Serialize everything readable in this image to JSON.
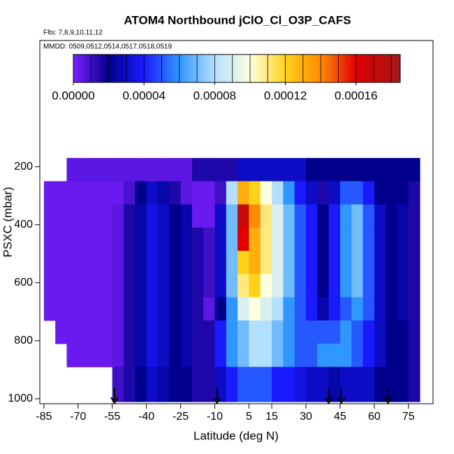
{
  "chart_data": {
    "type": "heatmap",
    "title": "ATOM4 Northbound jClO_Cl_O3P_CAFS",
    "subtitle": "Flts: 7,8,9,10,11,12",
    "annotation": "MMDD: 0509,0512,0514,0517,0518,0519",
    "xlabel": "Latitude (deg N)",
    "ylabel": "PSXC (mbar)",
    "xlim": [
      -86.8,
      85.8
    ],
    "xticks": [
      -85,
      -70,
      -55,
      -40,
      -25,
      -10,
      5,
      15,
      30,
      45,
      60,
      75
    ],
    "ylim": [
      1017,
      -235
    ],
    "y_reversed": true,
    "yticks": [
      200,
      400,
      600,
      800,
      1000
    ],
    "lat_edges": [
      -85,
      -80,
      -75,
      -70,
      -65,
      -60,
      -55,
      -50,
      -45,
      -40,
      -35,
      -30,
      -25,
      -20,
      -15,
      -10,
      -5,
      0,
      5,
      10,
      15,
      20,
      25,
      30,
      35,
      40,
      45,
      50,
      55,
      60,
      65,
      70,
      75,
      80
    ],
    "pressure_edges": [
      170,
      250,
      330,
      410,
      490,
      570,
      650,
      730,
      810,
      890,
      1010
    ],
    "values": [
      [
        null,
        null,
        5e-06,
        5e-06,
        5e-06,
        5e-06,
        5e-06,
        5e-06,
        5e-06,
        5e-06,
        5e-06,
        5e-06,
        5e-06,
        1.5e-05,
        1.5e-05,
        1.5e-05,
        1.5e-05,
        3e-05,
        3e-05,
        3e-05,
        3e-05,
        3e-05,
        3e-05,
        2e-05,
        2e-05,
        2e-05,
        2e-05,
        2e-05,
        2e-05,
        2e-05,
        2e-05,
        2e-05,
        2e-05
      ],
      [
        3e-06,
        3e-06,
        3e-06,
        3e-06,
        3e-06,
        3e-06,
        3e-06,
        8e-06,
        2e-05,
        3e-05,
        2.5e-05,
        1.5e-05,
        5e-06,
        3e-06,
        3e-06,
        1e-05,
        8e-05,
        0.00013,
        0.00012,
        0.0001,
        8e-05,
        6e-05,
        4e-05,
        3e-05,
        1.5e-05,
        3e-05,
        5e-05,
        5e-05,
        4e-05,
        2e-05,
        2e-05,
        2e-05,
        1.5e-05
      ],
      [
        3e-06,
        3e-06,
        3e-06,
        3e-06,
        3e-06,
        3e-06,
        5e-06,
        1.5e-05,
        2.5e-05,
        3.5e-05,
        3e-05,
        2e-05,
        2.5e-05,
        3e-06,
        3e-06,
        3e-05,
        7e-05,
        0.00017,
        0.00014,
        0.00011,
        9e-05,
        7e-05,
        5e-05,
        4e-05,
        2e-05,
        4e-05,
        6e-05,
        7e-05,
        5e-05,
        3e-05,
        2e-05,
        2.5e-05,
        1.5e-05
      ],
      [
        3e-06,
        3e-06,
        3e-06,
        3e-06,
        3e-06,
        3e-06,
        5e-06,
        1.5e-05,
        2.5e-05,
        3.5e-05,
        3e-05,
        2e-05,
        2.5e-05,
        1.5e-05,
        1e-05,
        3e-05,
        7e-05,
        0.00016,
        0.00013,
        0.00011,
        9e-05,
        7e-05,
        5e-05,
        4e-05,
        2e-05,
        4e-05,
        6e-05,
        7e-05,
        5e-05,
        3e-05,
        2e-05,
        2.5e-05,
        1.5e-05
      ],
      [
        3e-06,
        3e-06,
        3e-06,
        3e-06,
        3e-06,
        3e-06,
        5e-06,
        1.5e-05,
        2.5e-05,
        3.5e-05,
        3e-05,
        2e-05,
        2.5e-05,
        1.5e-05,
        1e-05,
        3e-05,
        7e-05,
        0.00012,
        0.00013,
        0.00011,
        9e-05,
        7e-05,
        5e-05,
        4e-05,
        2e-05,
        4e-05,
        6e-05,
        7e-05,
        5e-05,
        3e-05,
        2e-05,
        2.5e-05,
        1.5e-05
      ],
      [
        3e-06,
        3e-06,
        3e-06,
        3e-06,
        3e-06,
        3e-06,
        5e-06,
        1.5e-05,
        2.5e-05,
        3.5e-05,
        3e-05,
        2e-05,
        2.5e-05,
        1.5e-05,
        1e-05,
        3e-05,
        7e-05,
        0.00011,
        0.00012,
        0.0001,
        9e-05,
        7e-05,
        5e-05,
        4e-05,
        2e-05,
        4e-05,
        6e-05,
        7e-05,
        5e-05,
        3e-05,
        2e-05,
        2.5e-05,
        1.5e-05
      ],
      [
        3e-06,
        3e-06,
        3e-06,
        3e-06,
        3e-06,
        3e-06,
        5e-06,
        1.5e-05,
        2.5e-05,
        3.5e-05,
        3e-05,
        2e-05,
        2.5e-05,
        1.5e-05,
        5e-06,
        2e-05,
        6e-05,
        9e-05,
        0.0001,
        9e-05,
        8e-05,
        6e-05,
        5e-05,
        4e-05,
        2.5e-05,
        4e-05,
        5e-05,
        6e-05,
        5e-05,
        3e-05,
        2e-05,
        2.5e-05,
        1.5e-05
      ],
      [
        null,
        3e-06,
        3e-06,
        3e-06,
        3e-06,
        3e-06,
        5e-06,
        1.5e-05,
        2.5e-05,
        3.5e-05,
        3e-05,
        2e-05,
        2.5e-05,
        1.5e-05,
        1.5e-05,
        4e-05,
        6e-05,
        7e-05,
        8e-05,
        8e-05,
        7e-05,
        6e-05,
        5e-05,
        5e-05,
        5e-05,
        5e-05,
        6e-05,
        5e-05,
        4e-05,
        3e-05,
        2e-05,
        2e-05,
        1.5e-05
      ],
      [
        null,
        null,
        3e-06,
        3e-06,
        3e-06,
        3e-06,
        5e-06,
        1.5e-05,
        2.5e-05,
        3.5e-05,
        3e-05,
        2e-05,
        2.5e-05,
        1.5e-05,
        1.5e-05,
        4e-05,
        6e-05,
        7e-05,
        8e-05,
        8e-05,
        7e-05,
        6e-05,
        5e-05,
        5e-05,
        6e-05,
        6e-05,
        6e-05,
        5e-05,
        4e-05,
        3e-05,
        2e-05,
        2e-05,
        1.5e-05
      ],
      [
        null,
        null,
        null,
        null,
        null,
        null,
        1e-05,
        1.5e-05,
        2e-05,
        3e-05,
        2.5e-05,
        2e-05,
        2e-05,
        1.5e-05,
        1.5e-05,
        3e-05,
        4e-05,
        5e-05,
        5e-05,
        5e-05,
        4e-05,
        4e-05,
        3.5e-05,
        3e-05,
        3e-05,
        2.5e-05,
        3e-05,
        3e-05,
        3e-05,
        2e-05,
        2e-05,
        2e-05,
        1.5e-05
      ]
    ],
    "arrows_lat": [
      -54,
      -9,
      40,
      45.5,
      66
    ],
    "colorbar_lim": [
      0,
      0.000185
    ],
    "colorbar_ticks": [
      {
        "value": 0,
        "label": "0.00000"
      },
      {
        "value": 4e-05,
        "label": "0.00004"
      },
      {
        "value": 8e-05,
        "label": "0.00008"
      },
      {
        "value": 0.00012,
        "label": "0.00012"
      },
      {
        "value": 0.00016,
        "label": "0.00016"
      }
    ],
    "colorbar_breaks": [
      1e-05,
      2e-05,
      3e-05,
      4e-05,
      5e-05,
      6e-05,
      7e-05,
      8e-05,
      9e-05,
      0.0001,
      0.00011,
      0.00012,
      0.00013,
      0.00014,
      0.00015,
      0.00016,
      0.00017,
      0.00018
    ],
    "colormap": [
      [
        0,
        "#7b1fff"
      ],
      [
        2e-05,
        "#00008c"
      ],
      [
        4e-05,
        "#1a1aff"
      ],
      [
        6e-05,
        "#2f97ff"
      ],
      [
        8e-05,
        "#b4e0ff"
      ],
      [
        0.0001,
        "#ffffe0"
      ],
      [
        0.00012,
        "#ffd21a"
      ],
      [
        0.00014,
        "#ff8a00"
      ],
      [
        0.00016,
        "#e00000"
      ],
      [
        0.000185,
        "#a01818"
      ]
    ]
  }
}
